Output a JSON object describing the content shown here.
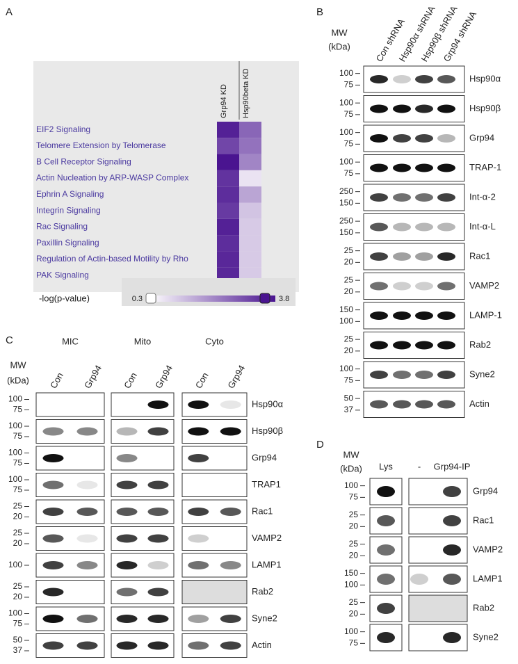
{
  "panel_a": {
    "label": "A",
    "columns": [
      "Grp94 KD",
      "Hsp90beta KD"
    ],
    "rows": [
      {
        "name": "EIF2 Signaling",
        "values": [
          3.6,
          2.5
        ]
      },
      {
        "name": "Telomere Extension by Telomerase",
        "values": [
          3.0,
          2.3
        ]
      },
      {
        "name": "B Cell Receptor Signaling",
        "values": [
          3.8,
          2.0
        ]
      },
      {
        "name": "Actin Nucleation by ARP-WASP Complex",
        "values": [
          3.3,
          0.5
        ]
      },
      {
        "name": "Ephrin A Signaling",
        "values": [
          3.4,
          1.5
        ]
      },
      {
        "name": "Integrin Signaling",
        "values": [
          3.2,
          1.0
        ]
      },
      {
        "name": "Rac Signaling",
        "values": [
          3.6,
          0.9
        ]
      },
      {
        "name": "Paxillin Signaling",
        "values": [
          3.4,
          0.9
        ]
      },
      {
        "name": "Regulation of Actin-based Motility by Rho",
        "values": [
          3.5,
          0.9
        ]
      },
      {
        "name": "PAK Signaling",
        "values": [
          3.5,
          0.9
        ]
      }
    ],
    "legend": {
      "title": "-log(p-value)",
      "min": 0.3,
      "max": 3.8
    }
  },
  "panel_b": {
    "label": "B",
    "mw": [
      "MW",
      "(kDa)"
    ],
    "lanes": [
      "Con shRNA",
      "Hsp90α shRNA",
      "Hsp90β shRNA",
      "Grp94 shRNA"
    ],
    "rows": [
      {
        "protein": "Hsp90α",
        "mw": [
          "100",
          "75"
        ]
      },
      {
        "protein": "Hsp90β",
        "mw": [
          "100",
          "75"
        ]
      },
      {
        "protein": "Grp94",
        "mw": [
          "100",
          "75"
        ]
      },
      {
        "protein": "TRAP-1",
        "mw": [
          "100",
          "75"
        ]
      },
      {
        "protein": "Int-α-2",
        "mw": [
          "250",
          "150"
        ]
      },
      {
        "protein": "Int-α-L",
        "mw": [
          "250",
          "150"
        ]
      },
      {
        "protein": "Rac1",
        "mw": [
          "25",
          "20"
        ]
      },
      {
        "protein": "VAMP2",
        "mw": [
          "25",
          "20"
        ]
      },
      {
        "protein": "LAMP-1",
        "mw": [
          "150",
          "100"
        ]
      },
      {
        "protein": "Rab2",
        "mw": [
          "25",
          "20"
        ]
      },
      {
        "protein": "Syne2",
        "mw": [
          "100",
          "75"
        ]
      },
      {
        "protein": "Actin",
        "mw": [
          "50",
          "37"
        ]
      }
    ]
  },
  "panel_c": {
    "label": "C",
    "mw": [
      "MW",
      "(kDa)"
    ],
    "groups": [
      "MIC",
      "Mito",
      "Cyto"
    ],
    "lanes": [
      "Con",
      "Grp94"
    ],
    "rows": [
      {
        "protein": "Hsp90α",
        "mw": [
          "100",
          "75"
        ]
      },
      {
        "protein": "Hsp90β",
        "mw": [
          "100",
          "75"
        ]
      },
      {
        "protein": "Grp94",
        "mw": [
          "100",
          "75"
        ]
      },
      {
        "protein": "TRAP1",
        "mw": [
          "100",
          "75"
        ]
      },
      {
        "protein": "Rac1",
        "mw": [
          "25",
          "20"
        ]
      },
      {
        "protein": "VAMP2",
        "mw": [
          "25",
          "20"
        ]
      },
      {
        "protein": "LAMP1",
        "mw": [
          "100"
        ]
      },
      {
        "protein": "Rab2",
        "mw": [
          "25",
          "20"
        ]
      },
      {
        "protein": "Syne2",
        "mw": [
          "100",
          "75"
        ]
      },
      {
        "protein": "Actin",
        "mw": [
          "50",
          "37"
        ]
      }
    ]
  },
  "panel_d": {
    "label": "D",
    "mw": [
      "MW",
      "(kDa)"
    ],
    "lanes": [
      "Lys",
      "-",
      "Grp94-IP"
    ],
    "rows": [
      {
        "protein": "Grp94",
        "mw": [
          "100",
          "75"
        ]
      },
      {
        "protein": "Rac1",
        "mw": [
          "25",
          "20"
        ]
      },
      {
        "protein": "VAMP2",
        "mw": [
          "25",
          "20"
        ]
      },
      {
        "protein": "LAMP1",
        "mw": [
          "150",
          "100"
        ]
      },
      {
        "protein": "Rab2",
        "mw": [
          "25",
          "20"
        ]
      },
      {
        "protein": "Syne2",
        "mw": [
          "100",
          "75"
        ]
      }
    ]
  }
}
